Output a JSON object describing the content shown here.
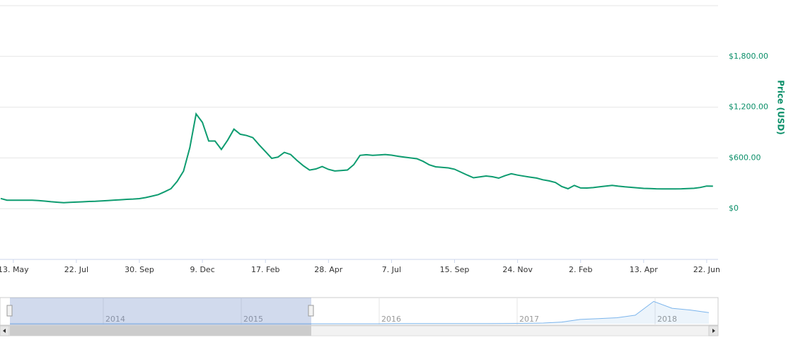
{
  "chart_data": {
    "type": "line",
    "y_axis_title": "Price (USD)",
    "color": "#0e9c70",
    "ylim": [
      -600,
      2400
    ],
    "yticks": [
      {
        "value": 0,
        "label": "$0"
      },
      {
        "value": 600,
        "label": "$600.00"
      },
      {
        "value": 1200,
        "label": "$1,200.00"
      },
      {
        "value": 1800,
        "label": "$1,800.00"
      }
    ],
    "grid": true,
    "categories": [
      null,
      null,
      "13. May",
      null,
      null,
      null,
      null,
      null,
      null,
      null,
      null,
      null,
      "22. Jul",
      null,
      null,
      null,
      null,
      null,
      null,
      null,
      null,
      null,
      "30. Sep",
      null,
      null,
      null,
      null,
      null,
      null,
      null,
      null,
      null,
      "9. Dec",
      null,
      null,
      null,
      null,
      null,
      null,
      null,
      null,
      null,
      "17. Feb",
      null,
      null,
      null,
      null,
      null,
      null,
      null,
      null,
      null,
      "28. Apr",
      null,
      null,
      null,
      null,
      null,
      null,
      null,
      null,
      null,
      "7. Jul",
      null,
      null,
      null,
      null,
      null,
      null,
      null,
      null,
      null,
      "15. Sep",
      null,
      null,
      null,
      null,
      null,
      null,
      null,
      null,
      null,
      "24. Nov",
      null,
      null,
      null,
      null,
      null,
      null,
      null,
      null,
      null,
      "2. Feb",
      null,
      null,
      null,
      null,
      null,
      null,
      null,
      null,
      null,
      "13. Apr",
      null,
      null,
      null,
      null,
      null,
      null,
      null,
      null,
      null,
      "22. Jun",
      null
    ],
    "values": [
      120,
      100,
      100,
      100,
      100,
      100,
      96,
      89,
      82,
      76,
      70,
      74,
      78,
      81,
      85,
      88,
      92,
      96,
      101,
      105,
      110,
      114,
      119,
      131,
      148,
      166,
      200,
      236,
      323,
      444,
      720,
      1120,
      1020,
      800,
      800,
      700,
      810,
      940,
      880,
      865,
      840,
      755,
      675,
      595,
      610,
      665,
      640,
      570,
      508,
      456,
      470,
      498,
      465,
      445,
      451,
      457,
      520,
      630,
      638,
      631,
      635,
      640,
      633,
      620,
      609,
      600,
      591,
      560,
      518,
      495,
      489,
      482,
      466,
      432,
      398,
      365,
      376,
      386,
      378,
      361,
      389,
      413,
      397,
      384,
      373,
      362,
      342,
      328,
      309,
      262,
      236,
      275,
      245,
      244,
      249,
      258,
      267,
      275,
      266,
      258,
      252,
      246,
      240,
      237,
      235,
      234,
      234,
      234,
      235,
      238,
      241,
      251,
      267,
      266
    ],
    "navigator": {
      "labels": [
        "2014",
        "2015",
        "2016",
        "2017",
        "2018"
      ],
      "ylim": [
        0,
        1400
      ],
      "values": [
        1,
        1,
        1,
        1,
        1,
        1,
        1,
        1,
        1,
        1,
        1,
        1,
        1,
        1,
        1,
        1,
        1,
        1,
        1,
        1,
        1,
        10,
        10,
        10,
        10,
        10,
        12,
        15,
        25,
        40,
        100,
        250,
        300,
        350,
        500,
        1300,
        900,
        800,
        650
      ]
    }
  }
}
